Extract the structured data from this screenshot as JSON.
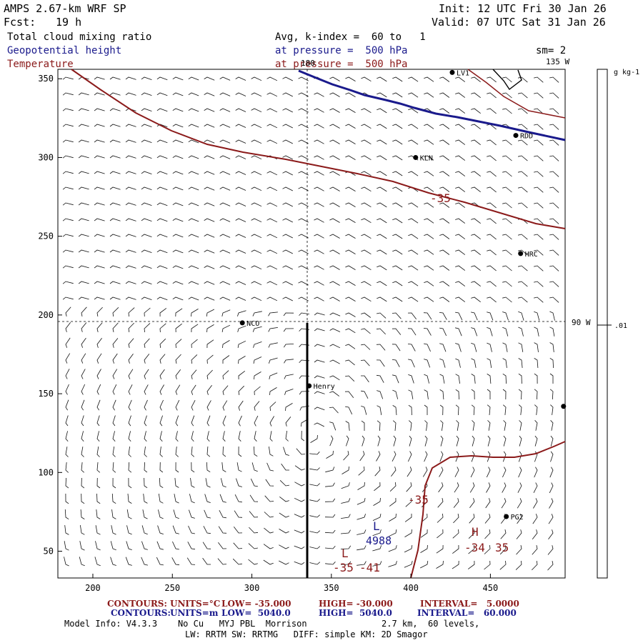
{
  "header": {
    "model": "AMPS 2.67-km WRF SP",
    "fcst_label": "Fcst:",
    "fcst_value": "19 h",
    "init": "Init: 12 UTC Fri 30 Jan 26",
    "valid": "Valid: 07 UTC Sat 31 Jan 26"
  },
  "fields": {
    "line1_name": "Total cloud mixing ratio",
    "line1_level": "Avg, k-index =  60 to   1",
    "line2_name": "Geopotential height",
    "line2_level": "at pressure =  500 hPa",
    "line3_name": "Temperature",
    "line3_level": "at pressure =  500 hPa",
    "smoothing": "sm= 2"
  },
  "colors": {
    "height": "#1a1a8c",
    "temperature": "#8b1a1a",
    "wind": "#000000"
  },
  "map": {
    "x_axis": {
      "ticks": [
        "200",
        "250",
        "300",
        "350",
        "400",
        "450"
      ],
      "range": [
        178,
        497
      ]
    },
    "y_axis": {
      "ticks": [
        "50",
        "100",
        "150",
        "200",
        "250",
        "300",
        "350"
      ],
      "range": [
        33,
        356
      ]
    },
    "meridian_labels": {
      "lon_180": "180",
      "lon_135w": "135 W",
      "lon_90w": "90 W"
    },
    "stations": [
      {
        "name": "LV1",
        "x": 426,
        "y": 354
      },
      {
        "name": "RDD",
        "x": 466,
        "y": 314
      },
      {
        "name": "KLN",
        "x": 403,
        "y": 300
      },
      {
        "name": "HRC",
        "x": 469,
        "y": 239
      },
      {
        "name": "NCO",
        "x": 294,
        "y": 195
      },
      {
        "name": "Henry",
        "x": 336,
        "y": 155
      },
      {
        "name": "PG2",
        "x": 460,
        "y": 72
      },
      {
        "name": "",
        "x": 496,
        "y": 142
      }
    ],
    "temperature_labels": {
      "upper": "-35",
      "mid": "-35",
      "lower_left": "-35",
      "lower_right_a": "-34",
      "lower_right_b": "35",
      "lower_left_min": "-41"
    },
    "extrema": {
      "low_marker": "L",
      "low_value": "4988",
      "low2_marker": "L",
      "high_marker": "H"
    }
  },
  "colorbar": {
    "units": "g kg-1",
    "value": ".01"
  },
  "footer": {
    "contours_label": "CONTOURS:",
    "temp_units": "UNITS=°C",
    "temp_low": "LOW= -35.000",
    "temp_high": "HIGH= -30.000",
    "temp_interval": "INTERVAL=   5.0000",
    "hgt_units": "UNITS=m",
    "hgt_low": "LOW=  5040.0",
    "hgt_high": "HIGH=  5040.0",
    "hgt_interval": "INTERVAL=   60.000",
    "model_info": "Model Info: V4.3.3    No Cu   MYJ PBL  Morrison",
    "grid_info": "2.7 km,  60 levels,",
    "physics_info": "LW: RRTM SW: RRTMG   DIFF: simple KM: 2D Smagor"
  }
}
